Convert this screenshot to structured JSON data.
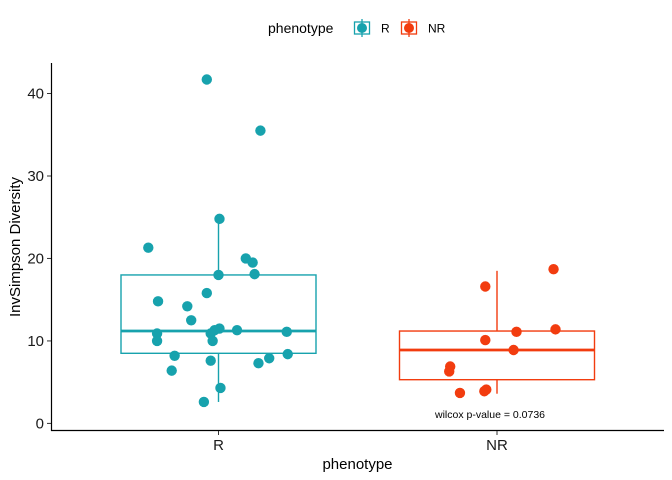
{
  "colors": {
    "R": "#17a2ad",
    "NR": "#f23c0f"
  },
  "chart_data": {
    "type": "box",
    "xlabel": "phenotype",
    "ylabel": "InvSimpson Diversity",
    "categories": [
      "R",
      "NR"
    ],
    "ylim": [
      -0.8,
      43.7
    ],
    "yticks": [
      0,
      10,
      20,
      30,
      40
    ],
    "grid": false,
    "legend": {
      "title": "phenotype",
      "position": "top",
      "entries": [
        "R",
        "NR"
      ]
    },
    "boxes": [
      {
        "group": "R",
        "whisker_low": 2.6,
        "q1": 8.5,
        "median": 11.2,
        "q3": 18.0,
        "whisker_high": 25.0
      },
      {
        "group": "NR",
        "whisker_low": 3.6,
        "q1": 5.3,
        "median": 8.9,
        "q3": 11.2,
        "whisker_high": 18.5
      }
    ],
    "points": {
      "R": [
        {
          "jitter": -0.12,
          "y": 41.7
        },
        {
          "jitter": 0.43,
          "y": 35.5
        },
        {
          "jitter": 0.01,
          "y": 24.8
        },
        {
          "jitter": -0.72,
          "y": 21.3
        },
        {
          "jitter": 0.28,
          "y": 20.0
        },
        {
          "jitter": 0.35,
          "y": 19.5
        },
        {
          "jitter": 0.0,
          "y": 18.0
        },
        {
          "jitter": 0.37,
          "y": 18.1
        },
        {
          "jitter": -0.12,
          "y": 15.8
        },
        {
          "jitter": -0.62,
          "y": 14.8
        },
        {
          "jitter": -0.32,
          "y": 14.2
        },
        {
          "jitter": -0.28,
          "y": 12.5
        },
        {
          "jitter": 0.01,
          "y": 11.5
        },
        {
          "jitter": -0.04,
          "y": 11.3
        },
        {
          "jitter": -0.08,
          "y": 10.9
        },
        {
          "jitter": 0.19,
          "y": 11.3
        },
        {
          "jitter": 0.7,
          "y": 11.1
        },
        {
          "jitter": -0.63,
          "y": 10.9
        },
        {
          "jitter": -0.63,
          "y": 10.0
        },
        {
          "jitter": -0.06,
          "y": 10.0
        },
        {
          "jitter": -0.45,
          "y": 8.2
        },
        {
          "jitter": 0.71,
          "y": 8.4
        },
        {
          "jitter": 0.52,
          "y": 7.9
        },
        {
          "jitter": -0.08,
          "y": 7.6
        },
        {
          "jitter": 0.41,
          "y": 7.3
        },
        {
          "jitter": -0.48,
          "y": 6.4
        },
        {
          "jitter": 0.02,
          "y": 4.3
        },
        {
          "jitter": -0.15,
          "y": 2.6
        }
      ],
      "NR": [
        {
          "jitter": 0.58,
          "y": 18.7
        },
        {
          "jitter": -0.12,
          "y": 16.6
        },
        {
          "jitter": 0.6,
          "y": 11.4
        },
        {
          "jitter": 0.2,
          "y": 11.1
        },
        {
          "jitter": -0.12,
          "y": 10.1
        },
        {
          "jitter": 0.17,
          "y": 8.9
        },
        {
          "jitter": -0.48,
          "y": 6.9
        },
        {
          "jitter": -0.49,
          "y": 6.3
        },
        {
          "jitter": -0.11,
          "y": 4.1
        },
        {
          "jitter": -0.13,
          "y": 3.9
        },
        {
          "jitter": -0.38,
          "y": 3.7
        }
      ]
    },
    "annotation": "wilcox p-value = 0.0736"
  }
}
